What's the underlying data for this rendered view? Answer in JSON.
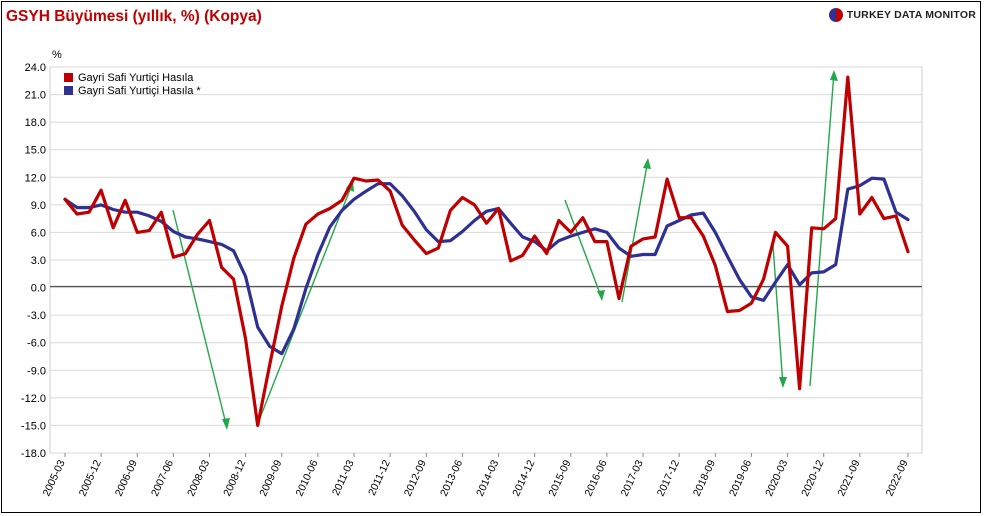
{
  "header": {
    "title": "GSYH Büyümesi (yıllık, %) (Kopya)",
    "brand": "TURKEY DATA MONITOR",
    "brand_icon": "turkey-data-monitor-logo-icon"
  },
  "chart_data": {
    "type": "line",
    "title": "GSYH Büyümesi (yıllık, %) (Kopya)",
    "ylabel": "%",
    "xlabel": "",
    "ylim": [
      -18,
      24
    ],
    "yticks": [
      "24.0",
      "21.0",
      "18.0",
      "15.0",
      "12.0",
      "9.0",
      "6.0",
      "3.0",
      "0.0",
      "-3.0",
      "-6.0",
      "-9.0",
      "-12.0",
      "-15.0",
      "-18.0"
    ],
    "grid": true,
    "legend_position": "top-left",
    "x": [
      "2005-03",
      "2005-06",
      "2005-09",
      "2005-12",
      "2006-03",
      "2006-06",
      "2006-09",
      "2006-12",
      "2007-03",
      "2007-06",
      "2007-09",
      "2007-12",
      "2008-03",
      "2008-06",
      "2008-09",
      "2008-12",
      "2009-03",
      "2009-06",
      "2009-09",
      "2009-12",
      "2010-03",
      "2010-06",
      "2010-09",
      "2010-12",
      "2011-03",
      "2011-06",
      "2011-09",
      "2011-12",
      "2012-03",
      "2012-06",
      "2012-09",
      "2012-12",
      "2013-03",
      "2013-06",
      "2013-09",
      "2013-12",
      "2014-03",
      "2014-06",
      "2014-09",
      "2014-12",
      "2015-03",
      "2015-06",
      "2015-09",
      "2015-12",
      "2016-03",
      "2016-06",
      "2016-09",
      "2016-12",
      "2017-03",
      "2017-06",
      "2017-09",
      "2017-12",
      "2018-03",
      "2018-06",
      "2018-09",
      "2018-12",
      "2019-03",
      "2019-06",
      "2019-09",
      "2019-12",
      "2020-03",
      "2020-06",
      "2020-09",
      "2020-12",
      "2021-03",
      "2021-06",
      "2021-09",
      "2021-12",
      "2022-03",
      "2022-06",
      "2022-09"
    ],
    "x_tick_labels": [
      "2005-03",
      "2005-12",
      "2006-09",
      "2007-06",
      "2008-03",
      "2008-12",
      "2009-09",
      "2010-06",
      "2011-03",
      "2011-12",
      "2012-09",
      "2013-06",
      "2014-03",
      "2014-12",
      "2015-09",
      "2016-06",
      "2017-03",
      "2017-12",
      "2018-09",
      "2019-06",
      "2020-03",
      "2020-12",
      "2021-09",
      "2022-09"
    ],
    "series": [
      {
        "name": "Gayri Safi Yurtiçi Hasıla",
        "color": "#c00000",
        "values": [
          9.6,
          8.0,
          8.2,
          10.6,
          6.5,
          9.5,
          6.0,
          6.2,
          8.2,
          3.3,
          3.7,
          5.8,
          7.3,
          2.2,
          0.9,
          -5.6,
          -15.0,
          -8.4,
          -2.0,
          3.2,
          6.9,
          8.0,
          8.6,
          9.5,
          11.9,
          11.6,
          11.7,
          10.5,
          6.8,
          5.2,
          3.7,
          4.3,
          8.4,
          9.8,
          9.0,
          7.0,
          8.6,
          2.9,
          3.5,
          5.6,
          3.7,
          7.3,
          6.0,
          7.6,
          5.0,
          5.0,
          -1.2,
          4.5,
          5.3,
          5.5,
          11.8,
          7.6,
          7.6,
          5.6,
          2.4,
          -2.6,
          -2.5,
          -1.7,
          0.9,
          6.0,
          4.5,
          -11.0,
          6.5,
          6.4,
          7.5,
          22.9,
          8.0,
          9.8,
          7.5,
          7.8,
          3.9
        ]
      },
      {
        "name": "Gayri Safi Yurtiçi Hasıla *",
        "color": "#2e3192",
        "values": [
          9.6,
          8.7,
          8.7,
          9.0,
          8.5,
          8.2,
          8.2,
          7.8,
          7.2,
          6.1,
          5.5,
          5.3,
          5.0,
          4.7,
          4.0,
          1.2,
          -4.3,
          -6.4,
          -7.2,
          -4.5,
          -0.1,
          3.6,
          6.6,
          8.4,
          9.6,
          10.5,
          11.3,
          11.3,
          10.0,
          8.3,
          6.3,
          5.0,
          5.1,
          6.1,
          7.3,
          8.3,
          8.6,
          7.0,
          5.5,
          5.0,
          4.0,
          5.1,
          5.6,
          6.0,
          6.4,
          6.0,
          4.3,
          3.4,
          3.6,
          3.6,
          6.7,
          7.3,
          7.9,
          8.1,
          6.0,
          3.4,
          0.9,
          -1.0,
          -1.4,
          0.6,
          2.5,
          0.3,
          1.6,
          1.7,
          2.5,
          10.7,
          11.1,
          11.9,
          11.8,
          8.2,
          7.4
        ]
      }
    ]
  }
}
